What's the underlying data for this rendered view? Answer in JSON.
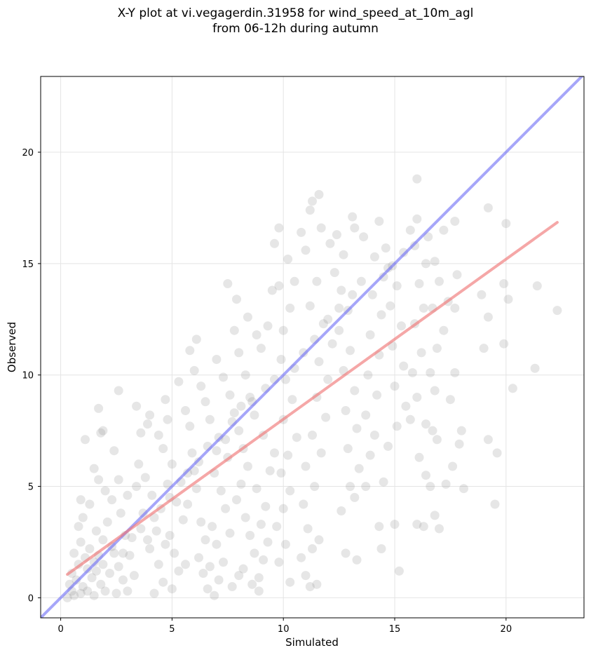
{
  "chart_data": {
    "type": "scatter",
    "title_line1": "X-Y plot at vi.vegagerdin.31958 for wind_speed_at_10m_agl",
    "title_line2": "from 06-12h during autumn",
    "xlabel": "Simulated",
    "ylabel": "Observed",
    "xlim": [
      -0.9,
      23.5
    ],
    "ylim": [
      -0.9,
      23.4
    ],
    "xticks": [
      0,
      5,
      10,
      15,
      20
    ],
    "yticks": [
      0,
      5,
      10,
      15,
      20
    ],
    "grid": true,
    "point_color": "#808080",
    "identity_line": {
      "color": "#6a6af5",
      "x": [
        -0.9,
        23.5
      ],
      "y": [
        -0.9,
        23.5
      ]
    },
    "regression_line": {
      "color": "#f07878",
      "x": [
        0.3,
        22.3
      ],
      "y": [
        1.05,
        16.85
      ]
    },
    "points": [
      [
        0.9,
        0.2
      ],
      [
        1.0,
        0.5
      ],
      [
        0.7,
        0.8
      ],
      [
        1.2,
        0.3
      ],
      [
        0.5,
        1.1
      ],
      [
        1.4,
        0.9
      ],
      [
        0.8,
        1.5
      ],
      [
        1.1,
        1.8
      ],
      [
        0.6,
        2.0
      ],
      [
        1.3,
        2.2
      ],
      [
        0.9,
        2.5
      ],
      [
        1.6,
        1.2
      ],
      [
        1.8,
        0.6
      ],
      [
        2.0,
        0.3
      ],
      [
        1.7,
        1.9
      ],
      [
        2.2,
        1.1
      ],
      [
        0.4,
        0.6
      ],
      [
        0.6,
        0.1
      ],
      [
        1.5,
        0.1
      ],
      [
        2.5,
        0.2
      ],
      [
        0.8,
        3.2
      ],
      [
        1.0,
        3.6
      ],
      [
        1.3,
        4.2
      ],
      [
        0.9,
        4.4
      ],
      [
        1.6,
        3.0
      ],
      [
        1.9,
        2.6
      ],
      [
        2.1,
        3.4
      ],
      [
        2.4,
        2.0
      ],
      [
        2.6,
        1.4
      ],
      [
        2.8,
        0.8
      ],
      [
        3.0,
        0.3
      ],
      [
        3.3,
        1.0
      ],
      [
        3.1,
        1.9
      ],
      [
        2.9,
        2.8
      ],
      [
        2.7,
        3.8
      ],
      [
        2.3,
        4.4
      ],
      [
        2.0,
        4.8
      ],
      [
        1.7,
        5.3
      ],
      [
        1.5,
        5.8
      ],
      [
        1.1,
        7.1
      ],
      [
        1.7,
        8.5
      ],
      [
        1.9,
        7.5
      ],
      [
        1.8,
        7.4
      ],
      [
        2.4,
        6.6
      ],
      [
        2.6,
        9.3
      ],
      [
        3.4,
        8.6
      ],
      [
        3.6,
        7.4
      ],
      [
        3.9,
        7.8
      ],
      [
        4.0,
        8.2
      ],
      [
        3.5,
        6.0
      ],
      [
        3.8,
        5.4
      ],
      [
        4.1,
        4.6
      ],
      [
        3.7,
        3.8
      ],
      [
        4.3,
        3.0
      ],
      [
        4.0,
        2.2
      ],
      [
        4.4,
        1.5
      ],
      [
        4.6,
        0.7
      ],
      [
        4.2,
        0.2
      ],
      [
        5.0,
        0.4
      ],
      [
        5.3,
        1.2
      ],
      [
        5.1,
        2.0
      ],
      [
        4.9,
        2.8
      ],
      [
        5.5,
        3.5
      ],
      [
        5.2,
        4.3
      ],
      [
        4.8,
        5.1
      ],
      [
        5.0,
        6.0
      ],
      [
        4.6,
        6.7
      ],
      [
        4.4,
        7.3
      ],
      [
        4.8,
        8.0
      ],
      [
        4.7,
        8.9
      ],
      [
        5.3,
        9.7
      ],
      [
        5.6,
        8.4
      ],
      [
        5.8,
        7.7
      ],
      [
        5.9,
        6.5
      ],
      [
        6.0,
        5.7
      ],
      [
        6.1,
        4.9
      ],
      [
        5.7,
        4.2
      ],
      [
        6.3,
        3.4
      ],
      [
        6.5,
        2.6
      ],
      [
        6.2,
        1.8
      ],
      [
        6.4,
        1.1
      ],
      [
        6.6,
        0.4
      ],
      [
        6.9,
        0.1
      ],
      [
        7.1,
        0.8
      ],
      [
        7.3,
        1.6
      ],
      [
        7.0,
        2.4
      ],
      [
        6.8,
        3.2
      ],
      [
        7.4,
        4.0
      ],
      [
        7.2,
        4.8
      ],
      [
        6.9,
        5.6
      ],
      [
        7.5,
        6.3
      ],
      [
        7.1,
        7.2
      ],
      [
        6.7,
        8.0
      ],
      [
        6.5,
        8.8
      ],
      [
        6.3,
        9.5
      ],
      [
        6.0,
        10.2
      ],
      [
        5.8,
        11.1
      ],
      [
        6.1,
        11.6
      ],
      [
        7.0,
        10.7
      ],
      [
        7.3,
        9.9
      ],
      [
        7.6,
        9.1
      ],
      [
        7.8,
        8.3
      ],
      [
        8.0,
        7.5
      ],
      [
        8.2,
        6.7
      ],
      [
        8.4,
        5.9
      ],
      [
        8.1,
        5.1
      ],
      [
        7.9,
        4.4
      ],
      [
        8.3,
        3.6
      ],
      [
        8.5,
        2.8
      ],
      [
        8.7,
        2.0
      ],
      [
        8.2,
        1.3
      ],
      [
        8.6,
        0.6
      ],
      [
        8.9,
        0.9
      ],
      [
        9.1,
        1.7
      ],
      [
        9.3,
        2.5
      ],
      [
        9.0,
        3.3
      ],
      [
        9.2,
        4.1
      ],
      [
        8.8,
        4.9
      ],
      [
        9.4,
        5.7
      ],
      [
        9.6,
        6.5
      ],
      [
        9.1,
        7.3
      ],
      [
        8.7,
        8.2
      ],
      [
        8.5,
        9.0
      ],
      [
        8.3,
        10.0
      ],
      [
        8.0,
        11.0
      ],
      [
        7.8,
        12.0
      ],
      [
        7.5,
        14.1
      ],
      [
        7.9,
        13.4
      ],
      [
        8.4,
        12.6
      ],
      [
        8.8,
        11.8
      ],
      [
        9.0,
        11.2
      ],
      [
        9.3,
        12.2
      ],
      [
        9.5,
        13.8
      ],
      [
        9.8,
        14.0
      ],
      [
        9.6,
        15.9
      ],
      [
        9.8,
        16.6
      ],
      [
        10.2,
        15.2
      ],
      [
        10.5,
        14.2
      ],
      [
        10.3,
        13.0
      ],
      [
        10.0,
        12.0
      ],
      [
        9.9,
        10.7
      ],
      [
        10.1,
        9.8
      ],
      [
        10.4,
        8.9
      ],
      [
        10.0,
        8.0
      ],
      [
        10.6,
        7.2
      ],
      [
        10.2,
        6.4
      ],
      [
        9.9,
        5.6
      ],
      [
        10.3,
        4.8
      ],
      [
        10.0,
        4.0
      ],
      [
        9.7,
        3.2
      ],
      [
        10.1,
        2.4
      ],
      [
        9.8,
        1.6
      ],
      [
        10.3,
        0.7
      ],
      [
        10.8,
        1.8
      ],
      [
        11.0,
        1.0
      ],
      [
        11.2,
        0.5
      ],
      [
        11.5,
        0.6
      ],
      [
        11.3,
        2.2
      ],
      [
        11.6,
        2.6
      ],
      [
        11.1,
        3.1
      ],
      [
        10.9,
        4.2
      ],
      [
        11.4,
        5.0
      ],
      [
        11.0,
        5.9
      ],
      [
        11.7,
        6.5
      ],
      [
        11.3,
        7.3
      ],
      [
        11.9,
        8.1
      ],
      [
        11.5,
        9.0
      ],
      [
        12.0,
        9.8
      ],
      [
        11.6,
        10.6
      ],
      [
        12.2,
        11.4
      ],
      [
        11.8,
        12.3
      ],
      [
        11.2,
        13.1
      ],
      [
        11.5,
        14.2
      ],
      [
        11.0,
        15.6
      ],
      [
        10.8,
        16.4
      ],
      [
        11.2,
        17.4
      ],
      [
        11.3,
        17.8
      ],
      [
        11.6,
        18.1
      ],
      [
        11.7,
        16.6
      ],
      [
        12.1,
        15.9
      ],
      [
        12.4,
        16.3
      ],
      [
        12.7,
        15.4
      ],
      [
        12.3,
        14.6
      ],
      [
        12.6,
        13.8
      ],
      [
        12.9,
        12.9
      ],
      [
        12.5,
        12.0
      ],
      [
        13.0,
        11.1
      ],
      [
        12.7,
        10.2
      ],
      [
        13.2,
        9.3
      ],
      [
        12.8,
        8.4
      ],
      [
        13.3,
        7.6
      ],
      [
        12.9,
        6.7
      ],
      [
        13.4,
        5.8
      ],
      [
        13.0,
        5.0
      ],
      [
        13.2,
        4.5
      ],
      [
        12.6,
        3.9
      ],
      [
        12.8,
        2.0
      ],
      [
        13.3,
        1.7
      ],
      [
        13.7,
        5.0
      ],
      [
        13.9,
        6.4
      ],
      [
        14.1,
        7.3
      ],
      [
        13.7,
        8.2
      ],
      [
        14.2,
        9.1
      ],
      [
        13.8,
        10.0
      ],
      [
        14.3,
        10.9
      ],
      [
        13.9,
        11.8
      ],
      [
        14.4,
        12.7
      ],
      [
        14.0,
        13.6
      ],
      [
        14.5,
        14.4
      ],
      [
        14.1,
        15.3
      ],
      [
        13.6,
        16.2
      ],
      [
        13.2,
        16.6
      ],
      [
        13.1,
        17.1
      ],
      [
        14.3,
        16.9
      ],
      [
        14.6,
        15.7
      ],
      [
        14.9,
        14.9
      ],
      [
        15.1,
        14.0
      ],
      [
        14.8,
        13.1
      ],
      [
        15.3,
        12.2
      ],
      [
        14.9,
        11.3
      ],
      [
        15.4,
        10.4
      ],
      [
        15.0,
        9.5
      ],
      [
        15.5,
        8.6
      ],
      [
        15.1,
        7.7
      ],
      [
        14.7,
        6.8
      ],
      [
        14.5,
        5.2
      ],
      [
        14.3,
        3.2
      ],
      [
        14.4,
        2.2
      ],
      [
        15.0,
        3.3
      ],
      [
        15.2,
        1.2
      ],
      [
        15.7,
        8.0
      ],
      [
        16.0,
        9.0
      ],
      [
        15.8,
        10.1
      ],
      [
        16.2,
        11.0
      ],
      [
        15.9,
        12.3
      ],
      [
        16.3,
        13.0
      ],
      [
        16.1,
        14.1
      ],
      [
        16.4,
        15.0
      ],
      [
        15.9,
        15.8
      ],
      [
        15.7,
        16.5
      ],
      [
        16.0,
        17.0
      ],
      [
        16.0,
        18.8
      ],
      [
        16.5,
        16.2
      ],
      [
        16.8,
        15.1
      ],
      [
        17.0,
        14.2
      ],
      [
        16.7,
        13.0
      ],
      [
        17.2,
        12.0
      ],
      [
        16.9,
        11.2
      ],
      [
        16.6,
        10.1
      ],
      [
        16.8,
        9.3
      ],
      [
        16.4,
        7.8
      ],
      [
        16.7,
        7.5
      ],
      [
        16.9,
        7.1
      ],
      [
        16.1,
        6.3
      ],
      [
        16.4,
        5.5
      ],
      [
        16.6,
        5.0
      ],
      [
        16.3,
        3.2
      ],
      [
        16.0,
        3.3
      ],
      [
        16.8,
        3.7
      ],
      [
        17.0,
        3.1
      ],
      [
        17.3,
        5.1
      ],
      [
        17.6,
        5.9
      ],
      [
        17.9,
        6.9
      ],
      [
        18.0,
        7.5
      ],
      [
        18.1,
        4.9
      ],
      [
        17.5,
        8.9
      ],
      [
        17.7,
        10.1
      ],
      [
        17.7,
        13.0
      ],
      [
        17.4,
        13.3
      ],
      [
        17.8,
        14.5
      ],
      [
        17.7,
        16.9
      ],
      [
        17.2,
        16.5
      ],
      [
        18.9,
        13.6
      ],
      [
        19.0,
        11.2
      ],
      [
        19.2,
        12.6
      ],
      [
        19.2,
        17.5
      ],
      [
        19.2,
        7.1
      ],
      [
        19.5,
        4.2
      ],
      [
        19.6,
        6.5
      ],
      [
        19.9,
        11.4
      ],
      [
        19.9,
        14.1
      ],
      [
        20.0,
        16.8
      ],
      [
        20.1,
        13.4
      ],
      [
        20.3,
        9.4
      ],
      [
        21.3,
        10.3
      ],
      [
        21.4,
        14.0
      ],
      [
        22.3,
        12.9
      ],
      [
        0.3,
        0.0
      ],
      [
        0.5,
        0.3
      ],
      [
        1.2,
        1.3
      ],
      [
        1.5,
        1.6
      ],
      [
        1.9,
        1.5
      ],
      [
        2.3,
        2.3
      ],
      [
        2.8,
        2.0
      ],
      [
        3.2,
        2.7
      ],
      [
        3.6,
        3.1
      ],
      [
        3.9,
        2.6
      ],
      [
        4.2,
        3.6
      ],
      [
        4.5,
        4.0
      ],
      [
        4.9,
        4.5
      ],
      [
        5.4,
        5.2
      ],
      [
        5.7,
        5.6
      ],
      [
        6.2,
        6.1
      ],
      [
        6.6,
        6.8
      ],
      [
        7.0,
        6.6
      ],
      [
        7.4,
        7.1
      ],
      [
        7.7,
        7.9
      ],
      [
        8.1,
        8.6
      ],
      [
        8.6,
        8.8
      ],
      [
        9.2,
        9.4
      ],
      [
        9.6,
        9.8
      ],
      [
        10.5,
        10.3
      ],
      [
        10.9,
        11.0
      ],
      [
        11.4,
        11.6
      ],
      [
        12.0,
        12.5
      ],
      [
        12.5,
        13.0
      ],
      [
        13.1,
        13.6
      ],
      [
        13.5,
        14.2
      ],
      [
        14.7,
        14.8
      ],
      [
        15.4,
        15.5
      ],
      [
        3.4,
        5.0
      ],
      [
        3.0,
        4.6
      ],
      [
        2.6,
        5.3
      ],
      [
        4.7,
        2.4
      ],
      [
        5.6,
        1.5
      ],
      [
        6.7,
        1.4
      ],
      [
        7.6,
        2.9
      ],
      [
        8.0,
        1.0
      ],
      [
        7.7,
        0.5
      ],
      [
        8.9,
        0.3
      ]
    ]
  }
}
